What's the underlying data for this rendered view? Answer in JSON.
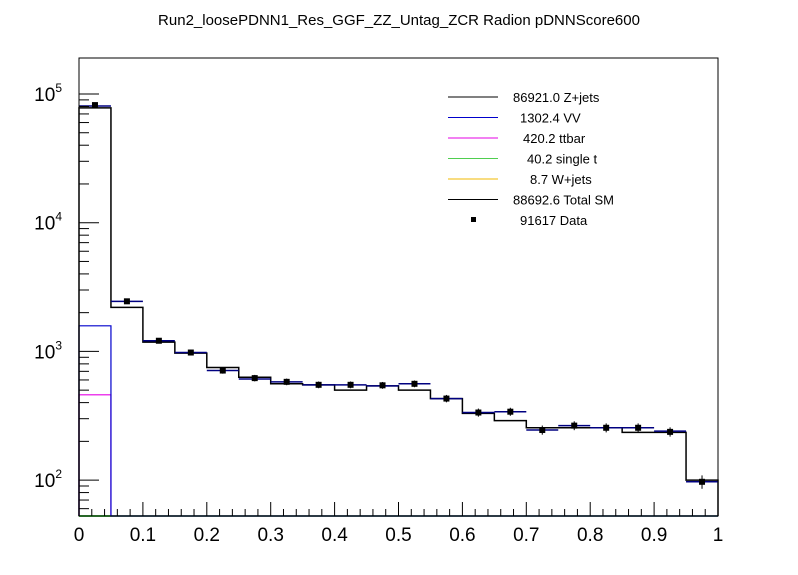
{
  "chart_data": {
    "type": "histogram",
    "title": "Run2_loosePDNN1_Res_GGF_ZZ_Untag_ZCR Radion  pDNNScore600",
    "xlabel": "",
    "ylabel": "",
    "xlim": [
      0,
      1
    ],
    "ylim": [
      55,
      180000
    ],
    "yscale": "log",
    "x_ticks": [
      "0",
      "0.1",
      "0.2",
      "0.3",
      "0.4",
      "0.5",
      "0.6",
      "0.7",
      "0.8",
      "0.9",
      "1"
    ],
    "y_ticks": [
      {
        "base": "10",
        "exp": "2",
        "value": 100
      },
      {
        "base": "10",
        "exp": "3",
        "value": 1000
      },
      {
        "base": "10",
        "exp": "4",
        "value": 10000
      },
      {
        "base": "10",
        "exp": "5",
        "value": 100000
      }
    ],
    "bin_edges": [
      0,
      0.05,
      0.1,
      0.15,
      0.2,
      0.25,
      0.3,
      0.35,
      0.4,
      0.45,
      0.5,
      0.55,
      0.6,
      0.65,
      0.7,
      0.75,
      0.8,
      0.85,
      0.9,
      0.95,
      1.0
    ],
    "series": [
      {
        "name": "Z+jets",
        "yield": "86921.0",
        "color": "#000000",
        "style": "line",
        "values": [
          78000,
          2200,
          1180,
          970,
          750,
          630,
          560,
          550,
          500,
          540,
          500,
          430,
          330,
          290,
          255,
          255,
          255,
          235,
          235,
          100
        ]
      },
      {
        "name": "VV",
        "yield": "1302.4",
        "color": "#0000cc",
        "style": "line",
        "values": [
          1580,
          0,
          0,
          0,
          0,
          0,
          0,
          0,
          0,
          0,
          0,
          0,
          0,
          0,
          0,
          0,
          0,
          0,
          0,
          0
        ]
      },
      {
        "name": "ttbar",
        "yield": "420.2",
        "color": "#e600e6",
        "style": "line",
        "values": [
          460,
          0,
          0,
          0,
          0,
          0,
          0,
          0,
          0,
          0,
          0,
          0,
          0,
          0,
          0,
          0,
          0,
          0,
          0,
          0
        ]
      },
      {
        "name": "single t",
        "yield": "40.2",
        "color": "#4fce4f",
        "style": "line",
        "values": [
          0,
          0,
          0,
          0,
          0,
          0,
          0,
          0,
          0,
          0,
          0,
          0,
          0,
          0,
          0,
          0,
          0,
          0,
          0,
          0
        ]
      },
      {
        "name": "W+jets",
        "yield": "8.7",
        "color": "#f2b800",
        "style": "line",
        "values": [
          0,
          0,
          0,
          0,
          0,
          0,
          0,
          0,
          0,
          0,
          0,
          0,
          0,
          0,
          0,
          0,
          0,
          0,
          0,
          0
        ]
      },
      {
        "name": "Total SM",
        "yield": "88692.6",
        "color": "#000080",
        "style": "line",
        "values": [
          80700,
          2450,
          1210,
          980,
          710,
          610,
          580,
          550,
          550,
          540,
          560,
          430,
          335,
          340,
          245,
          265,
          255,
          255,
          240,
          97
        ]
      },
      {
        "name": "Data",
        "yield": "91617",
        "color": "#000000",
        "style": "points",
        "values": [
          82000,
          2450,
          1210,
          980,
          710,
          620,
          580,
          550,
          550,
          545,
          560,
          430,
          335,
          340,
          245,
          265,
          255,
          255,
          237,
          97
        ]
      }
    ],
    "legend": {
      "position": "top-right",
      "entries": [
        {
          "label": "86921.0 Z+jets",
          "color": "#000000",
          "marker": "line"
        },
        {
          "label": "1302.4 VV",
          "color": "#0000cc",
          "marker": "line"
        },
        {
          "label": "420.2 ttbar",
          "color": "#e600e6",
          "marker": "line"
        },
        {
          "label": "40.2 single t",
          "color": "#4fce4f",
          "marker": "line"
        },
        {
          "label": "8.7 W+jets",
          "color": "#f2b800",
          "marker": "line"
        },
        {
          "label": "88692.6 Total SM",
          "color": "#000000",
          "marker": "line"
        },
        {
          "label": "91617 Data",
          "color": "#000000",
          "marker": "point"
        }
      ]
    },
    "grid": false
  }
}
